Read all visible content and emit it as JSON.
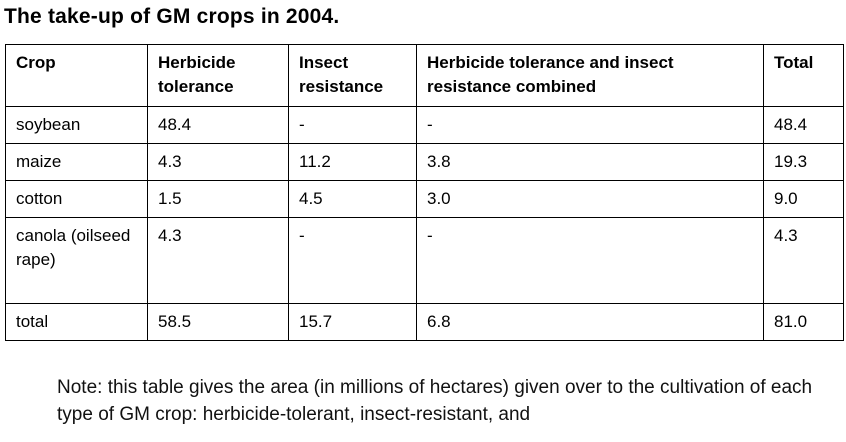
{
  "title": "The take-up of GM crops in 2004.",
  "table": {
    "headers": [
      "Crop",
      "Herbicide tolerance",
      "Insect resistance",
      "Herbicide tolerance and insect resistance combined",
      "Total"
    ],
    "rows": [
      [
        "soybean",
        "48.4",
        "-",
        "-",
        "48.4"
      ],
      [
        "maize",
        "4.3",
        "11.2",
        "3.8",
        "19.3"
      ],
      [
        "cotton",
        "1.5",
        "4.5",
        "3.0",
        "9.0"
      ],
      [
        "canola (oilseed rape)",
        "4.3",
        "-",
        "-",
        "4.3"
      ],
      [
        "total",
        "58.5",
        "15.7",
        "6.8",
        "81.0"
      ]
    ]
  },
  "note": "Note: this table gives the area (in millions of hectares) given over to the cultivation of each type of GM crop: herbicide-tolerant, insect-resistant, and"
}
